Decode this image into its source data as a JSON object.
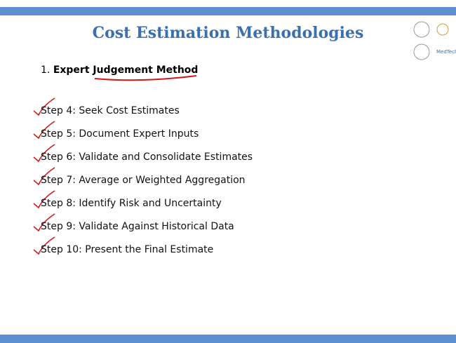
{
  "title": "Cost Estimation Methodologies",
  "logos": [
    "MedTech"
  ],
  "heading": {
    "number": "1.",
    "text": "Expert Judgement Method"
  },
  "steps": [
    "Step 4: Seek Cost Estimates",
    "Step 5: Document Expert Inputs",
    "Step 6: Validate and Consolidate Estimates",
    "Step 7: Average or Weighted Aggregation",
    "Step 8: Identify Risk and Uncertainty",
    "Step 9: Validate Against Historical Data",
    "Step 10: Present the Final Estimate"
  ]
}
